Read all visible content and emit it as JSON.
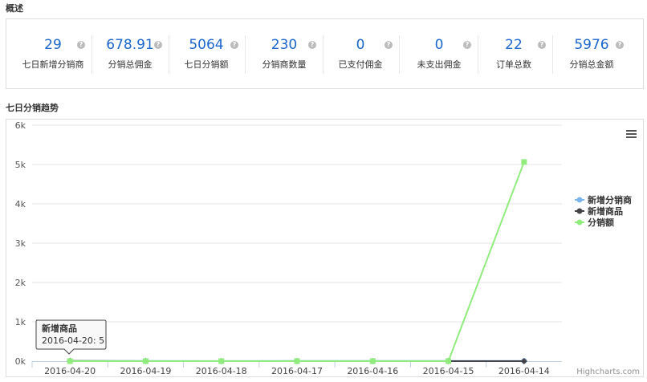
{
  "overview": {
    "title": "概述",
    "stats": [
      {
        "value": "29",
        "label": "七日新增分销商"
      },
      {
        "value": "678.91",
        "label": "分销总佣金"
      },
      {
        "value": "5064",
        "label": "七日分销额"
      },
      {
        "value": "230",
        "label": "分销商数量"
      },
      {
        "value": "0",
        "label": "已支付佣金"
      },
      {
        "value": "0",
        "label": "未支出佣金"
      },
      {
        "value": "22",
        "label": "订单总数"
      },
      {
        "value": "5976",
        "label": "分销总金额"
      }
    ]
  },
  "trend_title": "七日分销趋势",
  "chart_data": {
    "type": "line",
    "categories": [
      "2016-04-20",
      "2016-04-19",
      "2016-04-18",
      "2016-04-17",
      "2016-04-16",
      "2016-04-15",
      "2016-04-14"
    ],
    "yticks": [
      "0k",
      "1k",
      "2k",
      "3k",
      "4k",
      "5k",
      "6k"
    ],
    "ylim": [
      0,
      6000
    ],
    "grid": true,
    "legend": "right",
    "series": [
      {
        "name": "新增分销商",
        "color": "#7cb5ec",
        "marker": "circle",
        "values": [
          5,
          4,
          3,
          5,
          4,
          4,
          4
        ]
      },
      {
        "name": "新增商品",
        "color": "#434348",
        "marker": "diamond",
        "values": [
          5,
          0,
          0,
          0,
          0,
          0,
          0
        ]
      },
      {
        "name": "分销额",
        "color": "#90ed7d",
        "marker": "square",
        "values": [
          0,
          0,
          0,
          0,
          0,
          0,
          5064
        ]
      }
    ],
    "tooltip": {
      "series": "新增商品",
      "text": "2016-04-20: 5"
    },
    "credits": "Highcharts.com"
  }
}
